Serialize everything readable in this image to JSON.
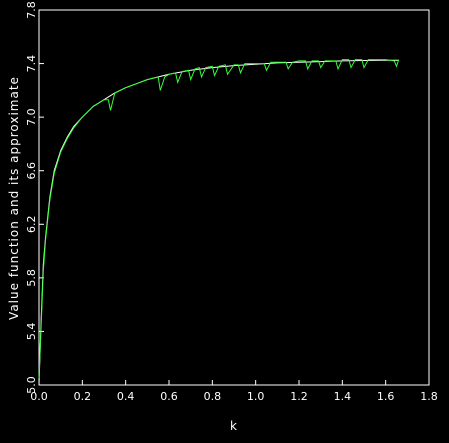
{
  "chart_data": {
    "type": "line",
    "xlabel": "k",
    "ylabel": "Value function and its approximate",
    "xlim": [
      0.0,
      1.8
    ],
    "ylim": [
      5.0,
      7.8
    ],
    "x_ticks": [
      "0.0",
      "0.2",
      "0.4",
      "0.6",
      "0.8",
      "1.0",
      "1.2",
      "1.4",
      "1.6",
      "1.8"
    ],
    "y_ticks": [
      "5.0",
      "5.4",
      "5.8",
      "6.2",
      "6.6",
      "7.0",
      "7.4",
      "7.8"
    ],
    "grid": false,
    "series": [
      {
        "style": "solid",
        "color": "#ffffff",
        "x": [
          0.0,
          0.01,
          0.02,
          0.03,
          0.05,
          0.07,
          0.1,
          0.13,
          0.16,
          0.2,
          0.25,
          0.3,
          0.35,
          0.4,
          0.45,
          0.5,
          0.6,
          0.7,
          0.8,
          0.9,
          1.0,
          1.1,
          1.2,
          1.3,
          1.4,
          1.5,
          1.6,
          1.66
        ],
        "y": [
          5.0,
          5.5,
          5.9,
          6.1,
          6.4,
          6.6,
          6.75,
          6.85,
          6.93,
          7.0,
          7.08,
          7.13,
          7.18,
          7.22,
          7.25,
          7.28,
          7.32,
          7.35,
          7.37,
          7.385,
          7.395,
          7.405,
          7.41,
          7.415,
          7.42,
          7.423,
          7.425,
          7.425
        ]
      },
      {
        "style": "solid",
        "color": "#33ff33",
        "x": [
          0.0,
          0.01,
          0.02,
          0.03,
          0.05,
          0.07,
          0.1,
          0.13,
          0.16,
          0.2,
          0.25,
          0.3,
          0.32,
          0.33,
          0.35,
          0.4,
          0.45,
          0.5,
          0.55,
          0.56,
          0.58,
          0.6,
          0.63,
          0.64,
          0.66,
          0.69,
          0.7,
          0.72,
          0.74,
          0.75,
          0.77,
          0.8,
          0.81,
          0.83,
          0.86,
          0.87,
          0.9,
          0.92,
          0.93,
          0.95,
          1.0,
          1.04,
          1.05,
          1.07,
          1.1,
          1.14,
          1.15,
          1.17,
          1.2,
          1.23,
          1.24,
          1.26,
          1.29,
          1.3,
          1.32,
          1.35,
          1.37,
          1.38,
          1.4,
          1.43,
          1.44,
          1.46,
          1.49,
          1.5,
          1.52,
          1.55,
          1.6,
          1.64,
          1.65,
          1.66
        ],
        "y": [
          5.05,
          5.45,
          5.85,
          6.08,
          6.38,
          6.58,
          6.74,
          6.84,
          6.92,
          7.0,
          7.08,
          7.13,
          7.13,
          7.05,
          7.18,
          7.22,
          7.25,
          7.28,
          7.3,
          7.2,
          7.3,
          7.32,
          7.33,
          7.26,
          7.34,
          7.35,
          7.28,
          7.36,
          7.37,
          7.3,
          7.37,
          7.38,
          7.31,
          7.38,
          7.39,
          7.32,
          7.39,
          7.39,
          7.33,
          7.4,
          7.4,
          7.4,
          7.35,
          7.41,
          7.41,
          7.41,
          7.36,
          7.41,
          7.42,
          7.42,
          7.36,
          7.42,
          7.42,
          7.37,
          7.42,
          7.42,
          7.42,
          7.36,
          7.43,
          7.43,
          7.37,
          7.43,
          7.43,
          7.37,
          7.43,
          7.43,
          7.43,
          7.42,
          7.38,
          7.43
        ]
      }
    ]
  }
}
